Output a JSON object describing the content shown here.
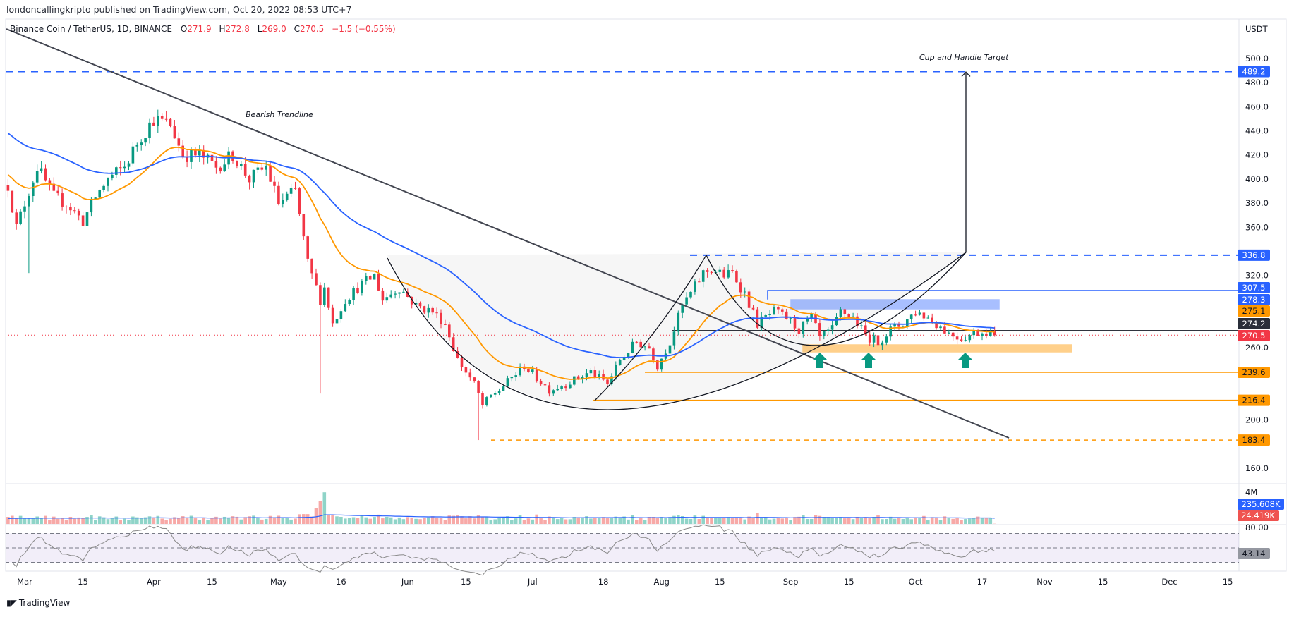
{
  "header": {
    "published": "londoncallingkripto published on TradingView.com, Oct 20, 2022 08:53 UTC+7"
  },
  "symbol": {
    "name": "Binance Coin / TetherUS, 1D, BINANCE",
    "o_label": "O",
    "o": "271.9",
    "h_label": "H",
    "h": "272.8",
    "l_label": "L",
    "l": "269.0",
    "c_label": "C",
    "c": "270.5",
    "change": "−1.5 (−0.55%)"
  },
  "footer": {
    "brand": "TradingView",
    "logo_glyph": "17"
  },
  "colors": {
    "up": "#089981",
    "down": "#f23645",
    "ema_fast": "#ff9800",
    "ema_slow": "#2962ff",
    "level_blue": "#2962ff",
    "level_orange": "#ff9800"
  },
  "chart_data": {
    "type": "candlestick",
    "title": "Binance Coin / TetherUS, 1D, BINANCE",
    "ylabel": "USDT",
    "ylim": [
      160,
      500
    ],
    "y_ticks": [
      "500.0",
      "480.0",
      "460.0",
      "440.0",
      "420.0",
      "400.0",
      "380.0",
      "360.0",
      "320.0",
      "260.0",
      "200.0",
      "160.0"
    ],
    "x_start_date": "Mar 1",
    "x_ticks": [
      {
        "label": "Mar",
        "day": 0
      },
      {
        "label": "15",
        "day": 14
      },
      {
        "label": "Apr",
        "day": 31
      },
      {
        "label": "15",
        "day": 45
      },
      {
        "label": "May",
        "day": 61
      },
      {
        "label": "16",
        "day": 76
      },
      {
        "label": "Jun",
        "day": 92
      },
      {
        "label": "15",
        "day": 106
      },
      {
        "label": "Jul",
        "day": 122
      },
      {
        "label": "18",
        "day": 139
      },
      {
        "label": "Aug",
        "day": 153
      },
      {
        "label": "15",
        "day": 167
      },
      {
        "label": "Sep",
        "day": 184
      },
      {
        "label": "15",
        "day": 198
      },
      {
        "label": "Oct",
        "day": 214
      },
      {
        "label": "17",
        "day": 230
      },
      {
        "label": "Nov",
        "day": 245
      },
      {
        "label": "15",
        "day": 259
      },
      {
        "label": "Dec",
        "day": 275
      },
      {
        "label": "15",
        "day": 289
      }
    ],
    "close_waypoints": [
      [
        -4,
        395
      ],
      [
        -2,
        360
      ],
      [
        0,
        380
      ],
      [
        3,
        410
      ],
      [
        7,
        385
      ],
      [
        10,
        380
      ],
      [
        14,
        365
      ],
      [
        17,
        385
      ],
      [
        20,
        400
      ],
      [
        24,
        410
      ],
      [
        27,
        430
      ],
      [
        31,
        450
      ],
      [
        35,
        445
      ],
      [
        38,
        420
      ],
      [
        42,
        420
      ],
      [
        46,
        410
      ],
      [
        50,
        420
      ],
      [
        54,
        400
      ],
      [
        58,
        410
      ],
      [
        61,
        380
      ],
      [
        65,
        390
      ],
      [
        68,
        330
      ],
      [
        71,
        300
      ],
      [
        72,
        310
      ],
      [
        74,
        280
      ],
      [
        77,
        300
      ],
      [
        80,
        310
      ],
      [
        84,
        320
      ],
      [
        86,
        300
      ],
      [
        90,
        310
      ],
      [
        94,
        295
      ],
      [
        98,
        290
      ],
      [
        101,
        280
      ],
      [
        104,
        250
      ],
      [
        108,
        230
      ],
      [
        110,
        212
      ],
      [
        112,
        220
      ],
      [
        114,
        225
      ],
      [
        117,
        235
      ],
      [
        120,
        245
      ],
      [
        123,
        235
      ],
      [
        126,
        225
      ],
      [
        130,
        230
      ],
      [
        133,
        235
      ],
      [
        136,
        240
      ],
      [
        140,
        230
      ],
      [
        143,
        250
      ],
      [
        147,
        265
      ],
      [
        150,
        260
      ],
      [
        152,
        245
      ],
      [
        155,
        265
      ],
      [
        158,
        295
      ],
      [
        160,
        305
      ],
      [
        163,
        322
      ],
      [
        165,
        325
      ],
      [
        168,
        320
      ],
      [
        170,
        322
      ],
      [
        173,
        305
      ],
      [
        176,
        280
      ],
      [
        180,
        290
      ],
      [
        183,
        285
      ],
      [
        186,
        275
      ],
      [
        189,
        285
      ],
      [
        191,
        268
      ],
      [
        194,
        275
      ],
      [
        196,
        290
      ],
      [
        199,
        285
      ],
      [
        202,
        270
      ],
      [
        205,
        265
      ],
      [
        208,
        275
      ],
      [
        211,
        280
      ],
      [
        214,
        290
      ],
      [
        217,
        285
      ],
      [
        219,
        280
      ],
      [
        222,
        272
      ],
      [
        225,
        268
      ],
      [
        228,
        272
      ],
      [
        231,
        274
      ],
      [
        233,
        270.5
      ]
    ],
    "indicators": {
      "ema_fast_last": 275.1,
      "ema_slow_last": 278.3,
      "volume_ma": "235.608K",
      "volume_last": "24.419K",
      "volume_tick": "4M",
      "rsi_tick": "80.00",
      "rsi_last": "43.14",
      "rsi_bands": [
        70,
        50,
        30
      ]
    },
    "levels": [
      {
        "value": "489.2",
        "style": "dashed",
        "color": "blue"
      },
      {
        "value": "336.8",
        "style": "dashed",
        "color": "blue"
      },
      {
        "value": "307.5",
        "style": "solid",
        "color": "blue"
      },
      {
        "value": "278.3",
        "style": "zone",
        "color": "blue"
      },
      {
        "value": "275.1",
        "style": "ema",
        "color": "orange"
      },
      {
        "value": "274.2",
        "style": "solid",
        "color": "dark"
      },
      {
        "value": "270.5",
        "style": "dotted",
        "color": "red"
      },
      {
        "value": "239.6",
        "style": "solid",
        "color": "orange"
      },
      {
        "value": "216.4",
        "style": "solid",
        "color": "orange"
      },
      {
        "value": "183.4",
        "style": "dashed",
        "color": "orange"
      }
    ],
    "annotations": {
      "trendline": "Bearish Trendline",
      "target": "Cup and Handle Target"
    }
  }
}
